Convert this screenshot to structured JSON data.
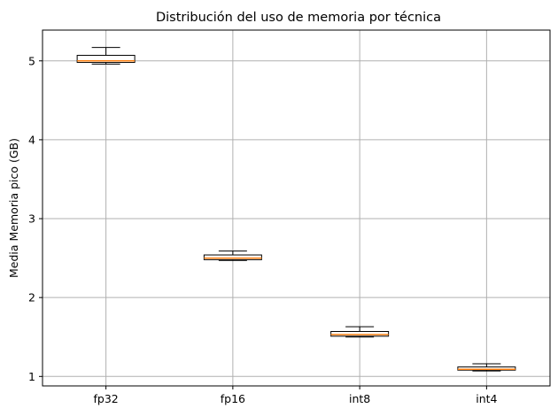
{
  "chart_data": {
    "type": "boxplot",
    "title": "Distribución del uso de memoria por técnica",
    "xlabel": "",
    "ylabel": "Media Memoria pico (GB)",
    "categories": [
      "fp32",
      "fp16",
      "int8",
      "int4"
    ],
    "boxes": [
      {
        "whislo": 4.96,
        "q1": 4.98,
        "med": 5.0,
        "q3": 5.07,
        "whishi": 5.17
      },
      {
        "whislo": 2.47,
        "q1": 2.48,
        "med": 2.5,
        "q3": 2.54,
        "whishi": 2.59
      },
      {
        "whislo": 1.5,
        "q1": 1.51,
        "med": 1.53,
        "q3": 1.57,
        "whishi": 1.63
      },
      {
        "whislo": 1.07,
        "q1": 1.08,
        "med": 1.09,
        "q3": 1.12,
        "whishi": 1.16
      }
    ],
    "ylim": [
      0.88,
      5.39
    ],
    "yticks": [
      1,
      2,
      3,
      4,
      5
    ],
    "grid": true,
    "colors": {
      "box_edge": "#000000",
      "median": "#ff7f0e",
      "grid": "#b0b0b0",
      "box_fill": "#ffffff"
    }
  }
}
